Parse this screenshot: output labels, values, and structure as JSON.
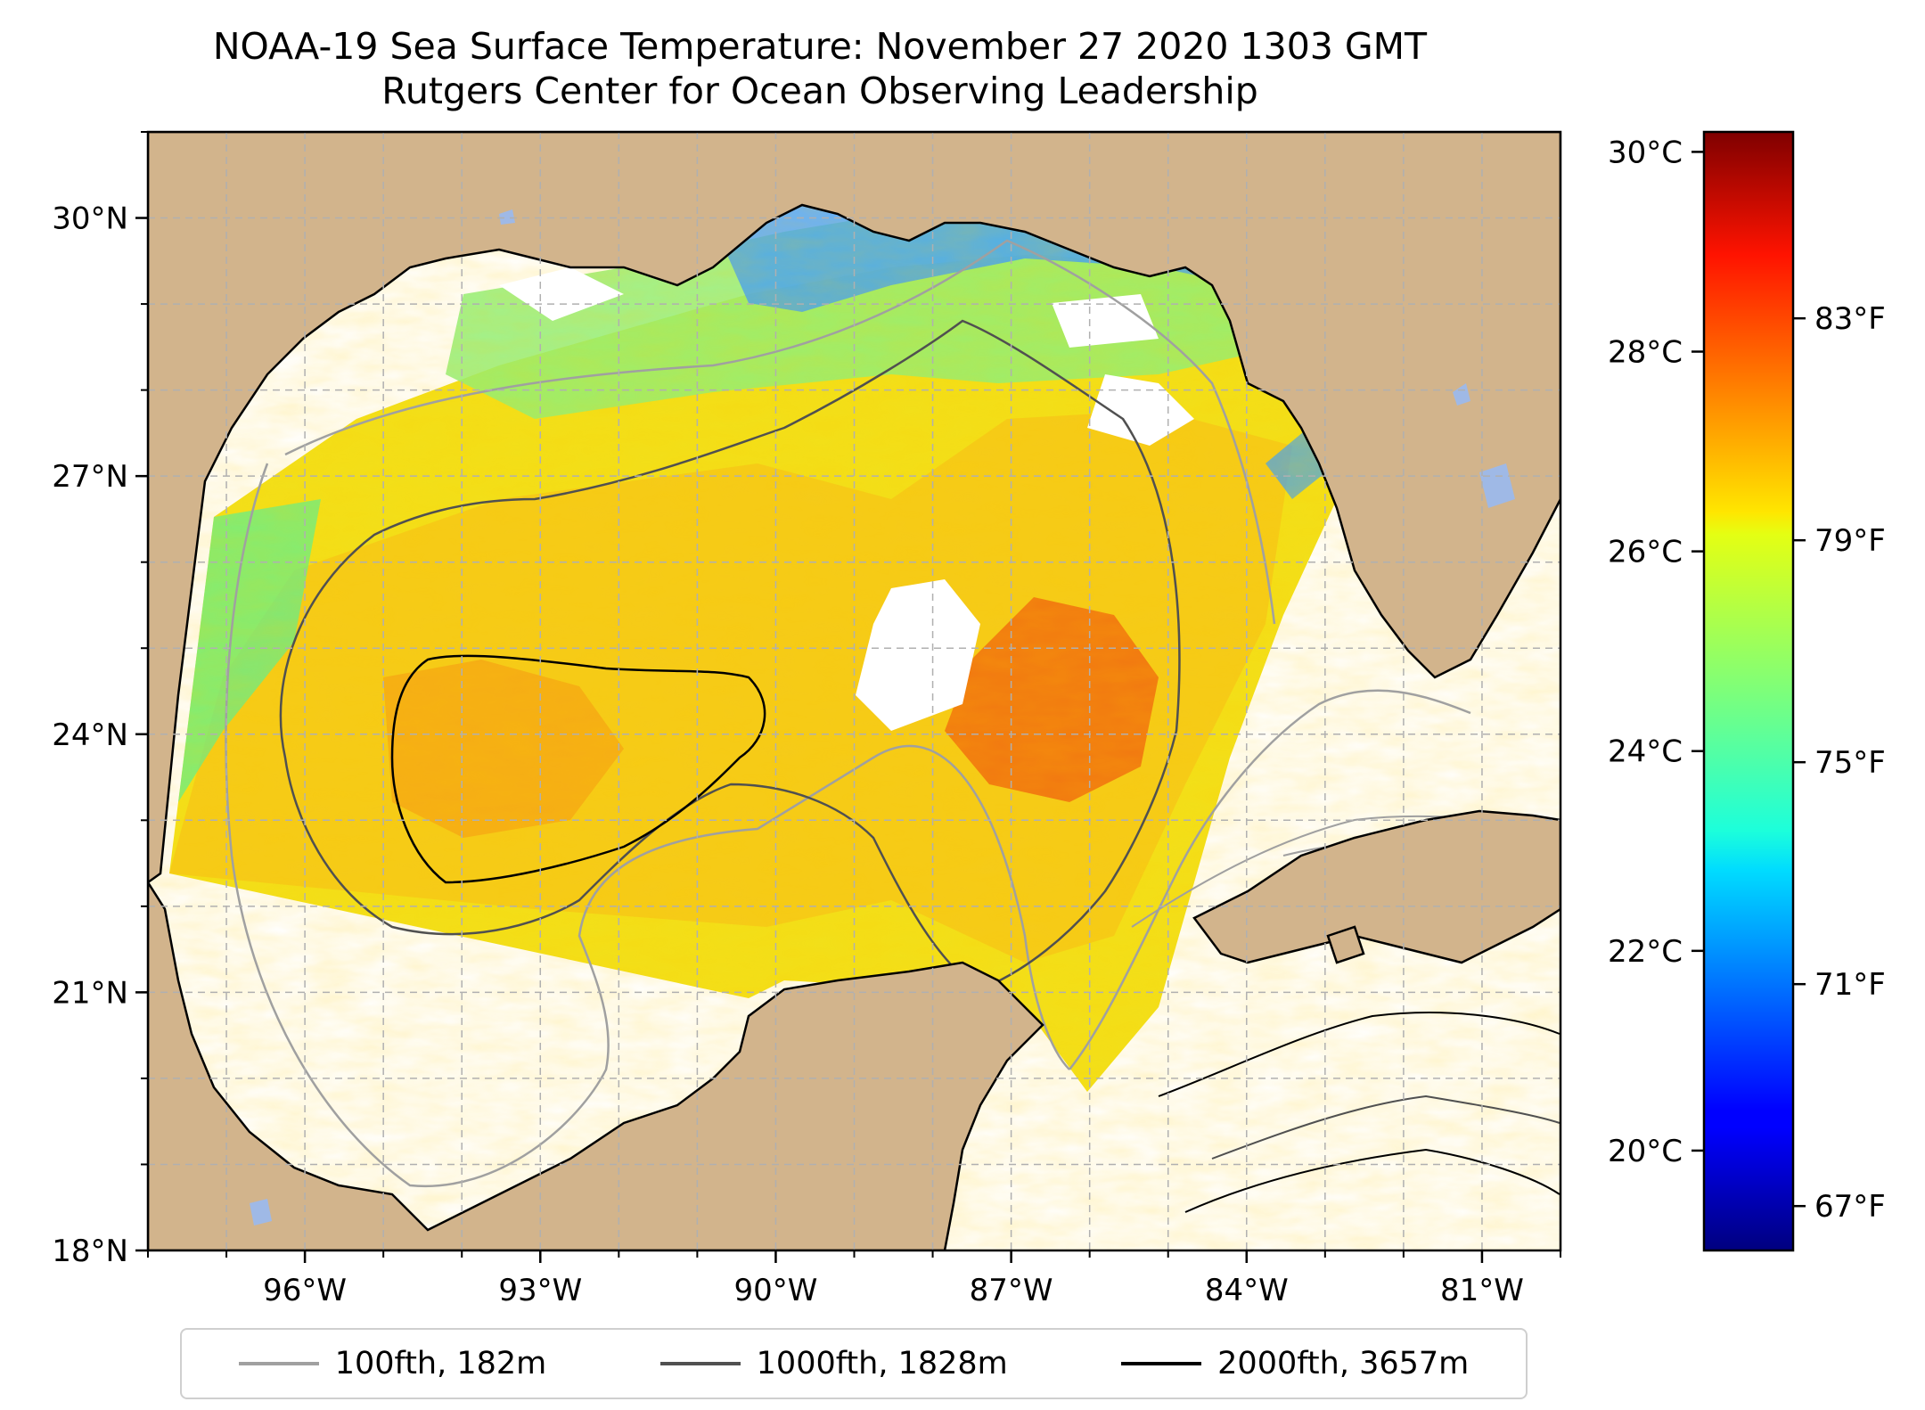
{
  "title": {
    "line1": "NOAA-19 Sea Surface Temperature: November 27 2020 1303 GMT",
    "line2": "Rutgers Center for Ocean Observing Leadership"
  },
  "map": {
    "lon_range": [
      -98,
      -80
    ],
    "lat_range": [
      18,
      31
    ],
    "lon_ticks": [
      "96°W",
      "93°W",
      "90°W",
      "87°W",
      "84°W",
      "81°W"
    ],
    "lon_tick_values": [
      -96,
      -93,
      -90,
      -87,
      -84,
      -81
    ],
    "lat_ticks": [
      "18°N",
      "21°N",
      "24°N",
      "27°N",
      "30°N"
    ],
    "lat_tick_values": [
      18,
      21,
      24,
      27,
      30
    ],
    "gridlines": true,
    "colors": {
      "land": "#d2b48c",
      "lakes": "#9fb9e6",
      "no_data": "#ffffff",
      "grid": "#b0b0b0"
    }
  },
  "colorbar": {
    "celsius_ticks": [
      "20°C",
      "22°C",
      "24°C",
      "26°C",
      "28°C",
      "30°C"
    ],
    "celsius_values": [
      20,
      22,
      24,
      26,
      28,
      30
    ],
    "fahrenheit_ticks": [
      "67°F",
      "71°F",
      "75°F",
      "79°F",
      "83°F"
    ],
    "fahrenheit_values": [
      67,
      71,
      75,
      79,
      83
    ],
    "range_celsius": [
      19,
      30.2
    ],
    "colormap": "jet"
  },
  "legend": [
    {
      "label": "100fth, 182m",
      "color": "#a0a0a0"
    },
    {
      "label": "1000fth, 1828m",
      "color": "#505050"
    },
    {
      "label": "2000fth, 3657m",
      "color": "#000000"
    }
  ]
}
